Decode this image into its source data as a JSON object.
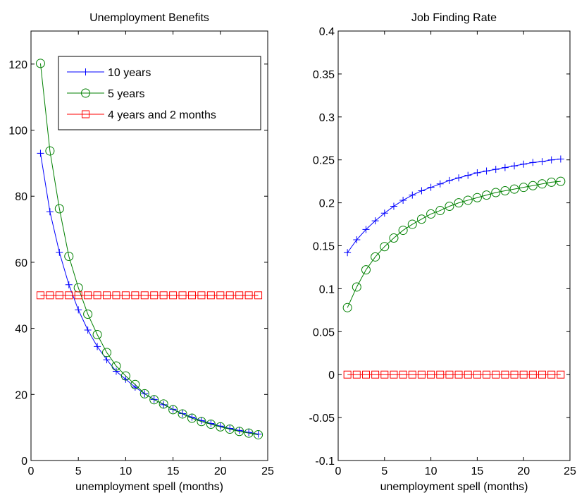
{
  "chart_data": [
    {
      "type": "line",
      "title": "Unemployment Benefits",
      "xlabel": "unemployment spell (months)",
      "ylabel": "",
      "xlim": [
        0,
        25
      ],
      "ylim": [
        0,
        130
      ],
      "xticks": [
        "0",
        "5",
        "10",
        "15",
        "20",
        "25"
      ],
      "yticks": [
        "0",
        "20",
        "40",
        "60",
        "80",
        "100",
        "120"
      ],
      "grid": false,
      "legend_position": "top-right",
      "x": [
        1,
        2,
        3,
        4,
        5,
        6,
        7,
        8,
        9,
        10,
        11,
        12,
        13,
        14,
        15,
        16,
        17,
        18,
        19,
        20,
        21,
        22,
        23,
        24
      ],
      "series": [
        {
          "name": "10 years",
          "color": "#0000ff",
          "marker": "plus",
          "values": [
            93,
            75.3,
            63,
            53.2,
            45.6,
            39.5,
            34.5,
            30.5,
            27,
            24.6,
            22.2,
            20.2,
            18.5,
            16.9,
            15.5,
            14.2,
            13.1,
            12.1,
            11.2,
            10.4,
            9.7,
            9.1,
            8.5,
            8
          ]
        },
        {
          "name": "5 years",
          "color": "#008000",
          "marker": "circle",
          "values": [
            120.2,
            93.7,
            76.2,
            61.8,
            52.3,
            44.3,
            38.1,
            32.7,
            28.6,
            25.6,
            23,
            20.2,
            18.4,
            17.1,
            15.4,
            14.1,
            12.8,
            11.8,
            11,
            10.2,
            9.5,
            8.8,
            8.3,
            7.8
          ]
        },
        {
          "name": "4 years and 2 months",
          "color": "#ff0000",
          "marker": "square",
          "values": [
            50,
            50,
            50,
            50,
            50,
            50,
            50,
            50,
            50,
            50,
            50,
            50,
            50,
            50,
            50,
            50,
            50,
            50,
            50,
            50,
            50,
            50,
            50,
            50
          ]
        }
      ]
    },
    {
      "type": "line",
      "title": "Job Finding Rate",
      "xlabel": "unemployment spell (months)",
      "ylabel": "",
      "xlim": [
        0,
        25
      ],
      "ylim": [
        -0.1,
        0.4
      ],
      "xticks": [
        "0",
        "5",
        "10",
        "15",
        "20",
        "25"
      ],
      "yticks": [
        "-0.1",
        "-0.05",
        "0",
        "0.05",
        "0.1",
        "0.15",
        "0.2",
        "0.25",
        "0.3",
        "0.35",
        "0.4"
      ],
      "grid": false,
      "x": [
        1,
        2,
        3,
        4,
        5,
        6,
        7,
        8,
        9,
        10,
        11,
        12,
        13,
        14,
        15,
        16,
        17,
        18,
        19,
        20,
        21,
        22,
        23,
        24
      ],
      "series": [
        {
          "color": "#0000ff",
          "marker": "plus",
          "values": [
            0.142,
            0.157,
            0.169,
            0.179,
            0.188,
            0.196,
            0.203,
            0.209,
            0.214,
            0.218,
            0.222,
            0.226,
            0.229,
            0.232,
            0.235,
            0.237,
            0.239,
            0.241,
            0.243,
            0.245,
            0.247,
            0.248,
            0.25,
            0.251
          ]
        },
        {
          "color": "#008000",
          "marker": "circle",
          "values": [
            0.078,
            0.102,
            0.122,
            0.137,
            0.149,
            0.159,
            0.168,
            0.175,
            0.181,
            0.187,
            0.191,
            0.196,
            0.2,
            0.203,
            0.206,
            0.209,
            0.212,
            0.214,
            0.216,
            0.218,
            0.22,
            0.222,
            0.224,
            0.225
          ]
        },
        {
          "color": "#ff0000",
          "marker": "square",
          "values": [
            0,
            0,
            0,
            0,
            0,
            0,
            0,
            0,
            0,
            0,
            0,
            0,
            0,
            0,
            0,
            0,
            0,
            0,
            0,
            0,
            0,
            0,
            0,
            0
          ]
        }
      ]
    }
  ]
}
